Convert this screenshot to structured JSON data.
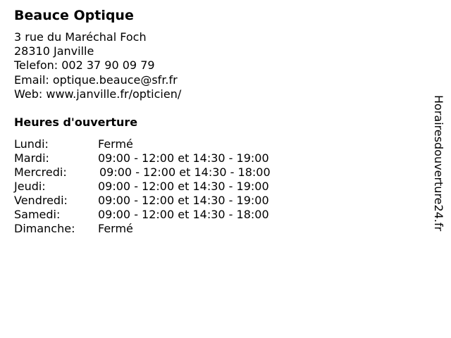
{
  "business": {
    "name": "Beauce Optique",
    "address_line1": "3 rue du Maréchal Foch",
    "address_line2": "28310 Janville",
    "phone": "Telefon: 002 37 90 09 79",
    "email": "Email: optique.beauce@sfr.fr",
    "web": "Web: www.janville.fr/opticien/"
  },
  "hours": {
    "title": "Heures d'ouverture",
    "rows": [
      {
        "day": "Lundi:",
        "time": "Fermé"
      },
      {
        "day": "Mardi:",
        "time": "09:00 - 12:00 et 14:30 - 19:00"
      },
      {
        "day": "Mercredi:",
        "time": "09:00 - 12:00 et 14:30 - 18:00"
      },
      {
        "day": "Jeudi:",
        "time": "09:00 - 12:00 et 14:30 - 19:00"
      },
      {
        "day": "Vendredi:",
        "time": "09:00 - 12:00 et 14:30 - 19:00"
      },
      {
        "day": "Samedi:",
        "time": "09:00 - 12:00 et 14:30 - 18:00"
      },
      {
        "day": "Dimanche:",
        "time": "Fermé"
      }
    ]
  },
  "side_text": "Horairesdouverture24.fr"
}
